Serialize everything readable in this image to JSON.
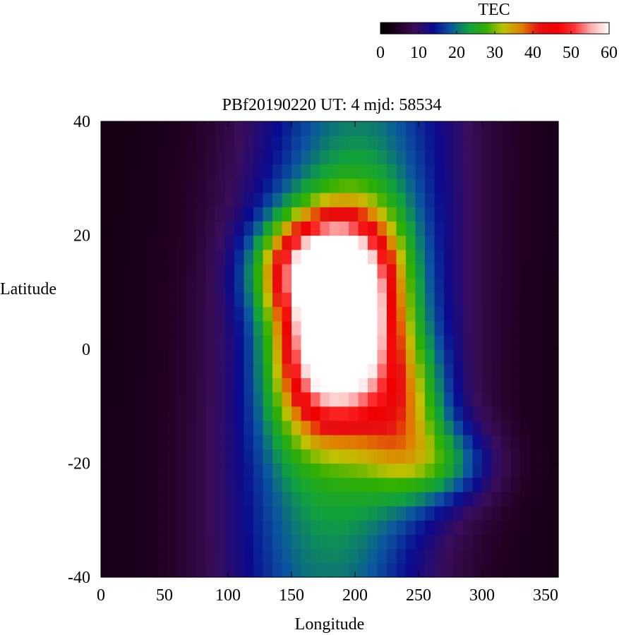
{
  "chart_data": {
    "type": "heatmap",
    "title": "PBf20190220  UT: 4  mjd: 58534",
    "xlabel": "Longitude",
    "ylabel": "Latitude",
    "xlim": [
      0,
      360
    ],
    "ylim": [
      -40,
      40
    ],
    "x_ticks": [
      "0",
      "50",
      "100",
      "150",
      "200",
      "250",
      "300",
      "350"
    ],
    "y_ticks": [
      "40",
      "20",
      "0",
      "-20",
      "-40"
    ],
    "colorbar": {
      "label": "TEC",
      "range": [
        0,
        60
      ],
      "ticks": [
        "0",
        "10",
        "20",
        "30",
        "40",
        "50",
        "60"
      ],
      "colors": [
        "#000000",
        "#200020",
        "#3a0d5a",
        "#0a0a90",
        "#0a55a0",
        "#10a040",
        "#30b000",
        "#c0c000",
        "#e08000",
        "#e81010",
        "#f00000",
        "#ff3030",
        "#ffb0b0",
        "#ffffff"
      ]
    },
    "grid_resolution": {
      "lon_step_deg": 7.5,
      "lat_step_deg": 2.5
    },
    "features": {
      "peak_tec": 60,
      "peak_lon": 185,
      "peak_lat": 4,
      "night_side_tec": 3,
      "description": "Equatorial TEC enhancement with crests near lat 15 and -10, centered on longitude ~180"
    }
  }
}
